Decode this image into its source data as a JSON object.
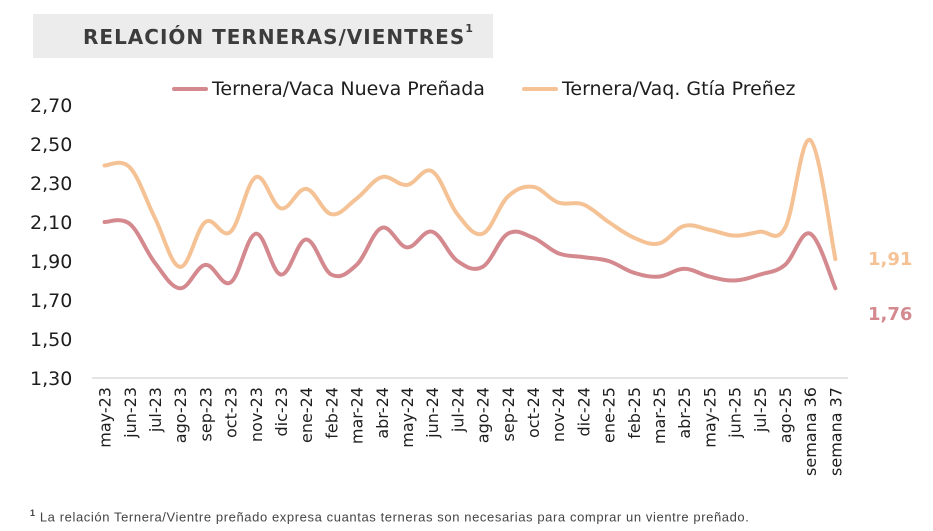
{
  "title": {
    "text": "RELACIÓN TERNERAS/VIENTRES",
    "sup": "1"
  },
  "footnote": {
    "marker": "1",
    "text": "La relación Ternera/Vientre preñado expresa cuantas terneras son necesarias para comprar un vientre preñado."
  },
  "chart_data": {
    "type": "line",
    "categories": [
      "may-23",
      "jun-23",
      "jul-23",
      "ago-23",
      "sep-23",
      "oct-23",
      "nov-23",
      "dic-23",
      "ene-24",
      "feb-24",
      "mar-24",
      "abr-24",
      "may-24",
      "jun-24",
      "jul-24",
      "ago-24",
      "sep-24",
      "oct-24",
      "nov-24",
      "dic-24",
      "ene-25",
      "feb-25",
      "mar-25",
      "abr-25",
      "may-25",
      "jun-25",
      "jul-25",
      "ago-25",
      "semana 36",
      "semana 37"
    ],
    "ylim": [
      1.3,
      2.7
    ],
    "yticks": [
      "1,30",
      "1,50",
      "1,70",
      "1,90",
      "2,10",
      "2,30",
      "2,50",
      "2,70"
    ],
    "ytick_values": [
      1.3,
      1.5,
      1.7,
      1.9,
      2.1,
      2.3,
      2.5,
      2.7
    ],
    "series": [
      {
        "name": "Ternera/Vaca Nueva Preñada",
        "color": "#d4898f",
        "values": [
          2.1,
          2.09,
          1.89,
          1.76,
          1.88,
          1.79,
          2.04,
          1.83,
          2.01,
          1.83,
          1.88,
          2.07,
          1.97,
          2.05,
          1.9,
          1.87,
          2.04,
          2.02,
          1.94,
          1.92,
          1.9,
          1.84,
          1.82,
          1.86,
          1.82,
          1.8,
          1.83,
          1.88,
          2.04,
          1.76
        ],
        "end_label": "1,76"
      },
      {
        "name": "Ternera/Vaq. Gtía Preñez",
        "color": "#f5c295",
        "values": [
          2.39,
          2.38,
          2.12,
          1.87,
          2.1,
          2.05,
          2.33,
          2.17,
          2.27,
          2.14,
          2.22,
          2.33,
          2.29,
          2.36,
          2.14,
          2.04,
          2.23,
          2.28,
          2.2,
          2.19,
          2.1,
          2.02,
          1.99,
          2.08,
          2.06,
          2.03,
          2.05,
          2.07,
          2.52,
          1.91
        ],
        "end_label": "1,91"
      }
    ],
    "grid": false,
    "legend": "top"
  }
}
